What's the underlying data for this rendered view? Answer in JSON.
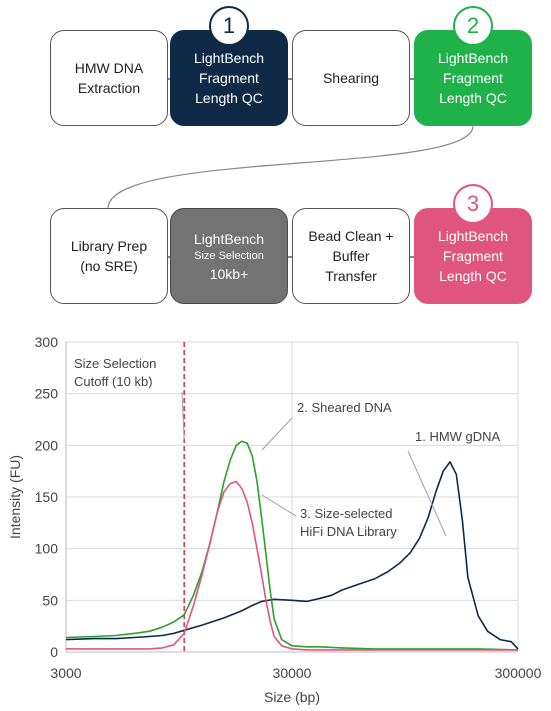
{
  "workflow": {
    "row1": [
      {
        "lines": [
          "HMW DNA",
          "Extraction"
        ],
        "style": "plain"
      },
      {
        "lines": [
          "LightBench",
          "Fragment",
          "Length QC"
        ],
        "style": "navy",
        "badge": "1"
      },
      {
        "lines": [
          "Shearing"
        ],
        "style": "plain"
      },
      {
        "lines": [
          "LightBench",
          "Fragment",
          "Length QC"
        ],
        "style": "green",
        "badge": "2"
      }
    ],
    "row2": [
      {
        "lines": [
          "Library Prep",
          "(no SRE)"
        ],
        "style": "plain"
      },
      {
        "lines": [
          "LightBench",
          "Size Selection",
          "10kb+"
        ],
        "style": "gray"
      },
      {
        "lines": [
          "Bead Clean +",
          "Buffer",
          "Transfer"
        ],
        "style": "plain"
      },
      {
        "lines": [
          "LightBench",
          "Fragment",
          "Length QC"
        ],
        "style": "pink",
        "badge": "3"
      }
    ]
  },
  "colors": {
    "navy": "#0e2a47",
    "green": "#1fb24a",
    "gray": "#737373",
    "pink": "#e0557f",
    "cutoff": "#e03040"
  },
  "chart_data": {
    "type": "line",
    "xscale": "log",
    "xlabel": "Size (bp)",
    "ylabel": "Intensity (FU)",
    "xlim": [
      3000,
      300000
    ],
    "ylim": [
      0,
      300
    ],
    "xticks": [
      "3000",
      "30000",
      "300000"
    ],
    "yticks": [
      "0",
      "50",
      "100",
      "150",
      "200",
      "250",
      "300"
    ],
    "grid": true,
    "cutoff": {
      "x": 10000,
      "label_lines": [
        "Size Selection",
        "Cutoff (10 kb)"
      ]
    },
    "series": [
      {
        "name": "1. HMW gDNA",
        "color": "#0e2a47",
        "x": [
          3000,
          4000,
          5000,
          6000,
          7000,
          8000,
          9000,
          10000,
          12000,
          15000,
          18000,
          20000,
          22000,
          25000,
          30000,
          35000,
          40000,
          45000,
          50000,
          60000,
          70000,
          80000,
          90000,
          100000,
          110000,
          120000,
          130000,
          140000,
          150000,
          160000,
          170000,
          180000,
          200000,
          220000,
          250000,
          280000,
          300000
        ],
        "y": [
          12,
          13,
          13,
          14,
          15,
          16,
          18,
          21,
          26,
          33,
          40,
          45,
          49,
          51,
          50,
          49,
          52,
          55,
          60,
          66,
          71,
          78,
          86,
          96,
          110,
          130,
          155,
          175,
          184,
          172,
          128,
          72,
          35,
          20,
          12,
          10,
          3
        ]
      },
      {
        "name": "2. Sheared DNA",
        "color": "#2ca02c",
        "x": [
          3000,
          4000,
          5000,
          6000,
          7000,
          8000,
          9000,
          10000,
          11000,
          12000,
          13000,
          14000,
          15000,
          16000,
          17000,
          18000,
          19000,
          20000,
          21000,
          22000,
          23000,
          24000,
          25000,
          27000,
          30000,
          35000,
          40000,
          50000,
          70000,
          100000,
          150000,
          200000,
          300000
        ],
        "y": [
          14,
          15,
          16,
          18,
          20,
          24,
          29,
          36,
          55,
          78,
          105,
          135,
          165,
          186,
          200,
          204,
          202,
          190,
          165,
          130,
          95,
          60,
          32,
          12,
          6,
          5,
          5,
          4,
          3,
          3,
          3,
          3,
          2
        ]
      },
      {
        "name": "3. Size-selected",
        "color": "#e0557f",
        "x": [
          3000,
          4000,
          5000,
          6000,
          7000,
          8000,
          9000,
          10000,
          11000,
          12000,
          13000,
          14000,
          15000,
          16000,
          17000,
          18000,
          19000,
          20000,
          21000,
          22000,
          23000,
          24000,
          25000,
          27000,
          30000,
          35000,
          40000,
          50000,
          70000,
          100000,
          150000,
          200000,
          300000
        ],
        "y": [
          3,
          3,
          3,
          3,
          3,
          4,
          7,
          18,
          45,
          75,
          105,
          135,
          155,
          163,
          165,
          158,
          145,
          125,
          100,
          75,
          50,
          30,
          15,
          6,
          3,
          2,
          2,
          2,
          2,
          2,
          2,
          2,
          2
        ]
      }
    ],
    "annotations": [
      {
        "lines": [
          "2. Sheared DNA"
        ]
      },
      {
        "lines": [
          "1. HMW gDNA"
        ]
      },
      {
        "lines": [
          "3. Size-selected",
          "HiFi DNA Library"
        ]
      }
    ]
  }
}
